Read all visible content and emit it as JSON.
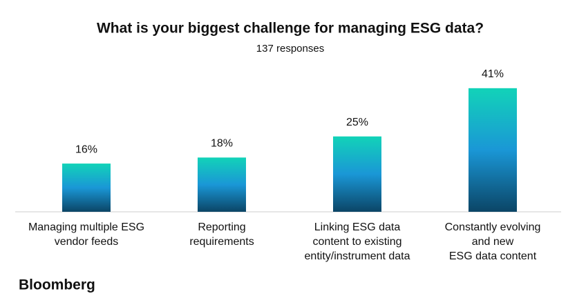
{
  "chart_data": {
    "type": "bar",
    "title": "What is your biggest challenge for managing ESG data?",
    "subtitle": "137 responses",
    "categories": [
      "Managing multiple ESG\nvendor feeds",
      "Reporting\nrequirements",
      "Linking ESG data\ncontent to existing\nentity/instrument data",
      "Constantly evolving\nand new\nESG data content"
    ],
    "values": [
      16,
      18,
      25,
      41
    ],
    "value_labels": [
      "16%",
      "18%",
      "25%",
      "41%"
    ],
    "gradient": [
      "#12d3b8",
      "#1a97d6",
      "#0b4566"
    ],
    "source": "Bloomberg"
  }
}
